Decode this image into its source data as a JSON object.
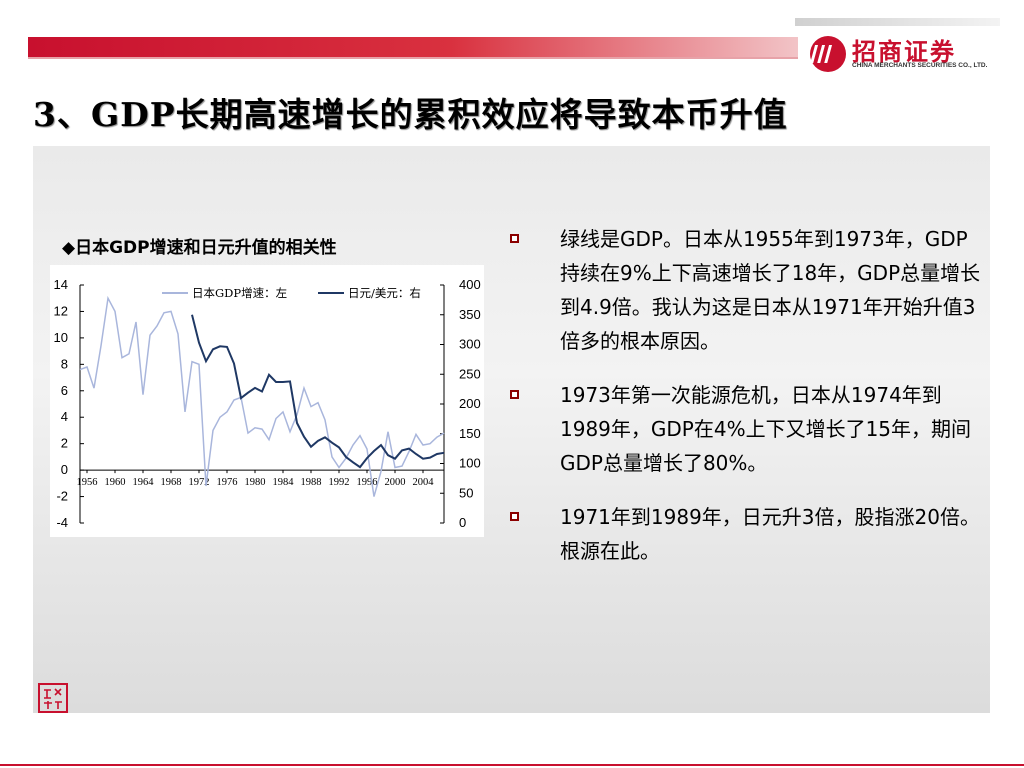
{
  "brand": {
    "name_cn": "招商证券",
    "name_en": "CHINA MERCHANTS SECURITIES CO., LTD.",
    "color": "#c8102e"
  },
  "slide": {
    "title": "3、GDP长期高速增长的累积效应将导致本币升值",
    "chart_caption": "◆日本GDP增速和日元升值的相关性"
  },
  "bullets": [
    "绿线是GDP。日本从1955年到1973年，GDP持续在9%上下高速增长了18年，GDP总量增长到4.9倍。我认为这是日本从1971年开始升值3倍多的根本原因。",
    "1973年第一次能源危机，日本从1974年到1989年，GDP在4%上下又增长了15年，期间GDP总量增长了80%。",
    "1971年到1989年，日元升3倍，股指涨20倍。根源在此。"
  ],
  "seal_text": "致远行",
  "chart_data": {
    "type": "line",
    "title": "",
    "xlabel": "",
    "ylabel": "",
    "x_ticks": [
      "1956",
      "1960",
      "1964",
      "1968",
      "1972",
      "1976",
      "1980",
      "1984",
      "1988",
      "1992",
      "1996",
      "2000",
      "2004"
    ],
    "xlim": [
      1955,
      2007
    ],
    "y_left": {
      "lim": [
        -4,
        14
      ],
      "ticks": [
        "-4",
        "-2",
        "0",
        "2",
        "4",
        "6",
        "8",
        "10",
        "12",
        "14"
      ]
    },
    "y_right": {
      "lim": [
        0,
        400
      ],
      "ticks": [
        "0",
        "50",
        "100",
        "150",
        "200",
        "250",
        "300",
        "350",
        "400"
      ]
    },
    "series": [
      {
        "name": "日本GDP增速：左",
        "axis": "left",
        "color": "#a9b6dc",
        "x": [
          1955,
          1956,
          1957,
          1958,
          1959,
          1960,
          1961,
          1962,
          1963,
          1964,
          1965,
          1966,
          1967,
          1968,
          1969,
          1970,
          1971,
          1972,
          1973,
          1974,
          1975,
          1976,
          1977,
          1978,
          1979,
          1980,
          1981,
          1982,
          1983,
          1984,
          1985,
          1986,
          1987,
          1988,
          1989,
          1990,
          1991,
          1992,
          1993,
          1994,
          1995,
          1996,
          1997,
          1998,
          1999,
          2000,
          2001,
          2002,
          2003,
          2004,
          2005,
          2006,
          2007
        ],
        "y": [
          7.6,
          7.8,
          6.2,
          9.4,
          13.0,
          12.0,
          8.5,
          8.8,
          11.2,
          5.7,
          10.2,
          10.9,
          11.9,
          12.0,
          10.3,
          4.4,
          8.2,
          8.0,
          -1.2,
          3.0,
          4.0,
          4.4,
          5.3,
          5.5,
          2.8,
          3.2,
          3.1,
          2.3,
          3.9,
          4.4,
          2.9,
          4.2,
          6.2,
          4.8,
          5.1,
          3.8,
          1.0,
          0.2,
          0.9,
          1.9,
          2.6,
          1.6,
          -2.0,
          -0.1,
          2.9,
          0.2,
          0.3,
          1.4,
          2.7,
          1.9,
          2.0,
          2.5,
          2.8
        ]
      },
      {
        "name": "日元/美元：右",
        "axis": "right",
        "color": "#1f3864",
        "x": [
          1971,
          1972,
          1973,
          1974,
          1975,
          1976,
          1977,
          1978,
          1979,
          1980,
          1981,
          1982,
          1983,
          1984,
          1985,
          1986,
          1987,
          1988,
          1989,
          1990,
          1991,
          1992,
          1993,
          1994,
          1995,
          1996,
          1997,
          1998,
          1999,
          2000,
          2001,
          2002,
          2003,
          2004,
          2005,
          2006,
          2007
        ],
        "y": [
          350,
          303,
          272,
          292,
          297,
          296,
          268,
          210,
          219,
          227,
          221,
          249,
          237,
          237,
          238,
          168,
          145,
          128,
          138,
          144,
          135,
          127,
          111,
          102,
          94,
          109,
          121,
          131,
          114,
          108,
          122,
          125,
          116,
          108,
          110,
          116,
          118
        ]
      }
    ],
    "legend_position": "top",
    "grid": false
  }
}
